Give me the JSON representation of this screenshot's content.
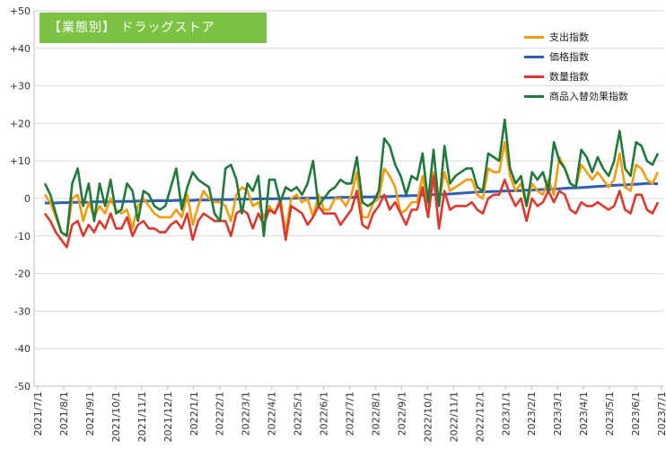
{
  "chart_data": {
    "type": "line",
    "title": "【業態別】 ドラッグストア",
    "xlabel": "",
    "ylabel": "",
    "ylim": [
      -50,
      50
    ],
    "yticks": [
      "-50",
      "-40",
      "-30",
      "-20",
      "-10",
      "0",
      "+10",
      "+20",
      "+30",
      "+40",
      "+50"
    ],
    "ytick_values": [
      -50,
      -40,
      -30,
      -20,
      -10,
      0,
      10,
      20,
      30,
      40,
      50
    ],
    "xticks": [
      "2021/7/1",
      "2021/8/1",
      "2021/9/1",
      "2021/10/1",
      "2021/11/1",
      "2021/12/1",
      "2022/1/1",
      "2022/2/1",
      "2022/3/1",
      "2022/4/1",
      "2022/5/1",
      "2022/6/1",
      "2022/7/1",
      "2022/8/1",
      "2022/9/1",
      "2022/10/1",
      "2022/11/1",
      "2022/12/1",
      "2023/1/1",
      "2023/2/1",
      "2023/3/1",
      "2023/4/1",
      "2023/5/1",
      "2023/6/1",
      "2023/7/1"
    ],
    "grid": true,
    "legend_position": "top-right",
    "x_unit": "week",
    "series": [
      {
        "name": "支出指数",
        "color": "#F59B0E",
        "values": [
          1,
          -1,
          -5,
          -9,
          -10,
          0,
          1,
          -6,
          -1,
          -5,
          -2,
          -4,
          0,
          -3,
          -4,
          -3,
          -8,
          -2,
          0,
          -2,
          -4,
          -5,
          -5,
          -5,
          -3,
          -5,
          1,
          -7,
          -2,
          2,
          0,
          -1,
          -1,
          -2,
          -6,
          1,
          3,
          2,
          -2,
          -1,
          -5,
          -2,
          -4,
          0,
          -9,
          0,
          1,
          -1,
          0,
          -5,
          1,
          -3,
          -3,
          0,
          0,
          -2,
          1,
          7,
          -5,
          -5,
          -1,
          0,
          8,
          6,
          3,
          -4,
          -3,
          -1,
          -1,
          6,
          -2,
          7,
          -1,
          7,
          2,
          3,
          4,
          5,
          5,
          1,
          0,
          8,
          7,
          7,
          15,
          6,
          2,
          4,
          -2,
          4,
          2,
          1,
          5,
          1,
          11,
          8,
          4,
          3,
          9,
          7,
          5,
          7,
          5,
          3,
          5,
          12,
          3,
          2,
          9,
          8,
          5,
          4,
          7
        ]
      },
      {
        "name": "価格指数",
        "color": "#2E5FB8",
        "values": [
          -1.2,
          -1.2,
          -1.2,
          -1.1,
          -1.1,
          -1.0,
          -1.0,
          -1.0,
          -1.0,
          -0.9,
          -0.9,
          -0.9,
          -0.9,
          -0.8,
          -0.8,
          -0.8,
          -0.8,
          -0.7,
          -0.7,
          -0.7,
          -0.6,
          -0.6,
          -0.6,
          -0.6,
          -0.5,
          -0.5,
          -0.5,
          -0.5,
          -0.4,
          -0.4,
          -0.4,
          -0.3,
          -0.3,
          -0.3,
          -0.3,
          -0.2,
          -0.2,
          -0.2,
          -0.2,
          -0.1,
          -0.1,
          -0.1,
          -0.1,
          0.0,
          0.0,
          0.0,
          0.1,
          0.1,
          0.1,
          0.1,
          0.2,
          0.2,
          0.2,
          0.2,
          0.3,
          0.3,
          0.3,
          0.3,
          0.4,
          0.4,
          0.4,
          0.4,
          0.5,
          0.5,
          0.6,
          0.7,
          0.7,
          0.8,
          0.8,
          0.9,
          0.9,
          1.0,
          1.0,
          1.1,
          1.2,
          1.3,
          1.4,
          1.5,
          1.6,
          1.7,
          1.8,
          1.8,
          1.9,
          1.9,
          2.0,
          2.0,
          2.1,
          2.1,
          2.2,
          2.2,
          2.3,
          2.4,
          2.4,
          2.5,
          2.6,
          2.7,
          2.8,
          2.8,
          2.9,
          3.0,
          3.1,
          3.2,
          3.3,
          3.4,
          3.5,
          3.6,
          3.6,
          3.7,
          3.8,
          3.9,
          4.0,
          4.0,
          3.9
        ]
      },
      {
        "name": "数量指数",
        "color": "#E0372C",
        "values": [
          -4,
          -6,
          -9,
          -11,
          -13,
          -7,
          -6,
          -10,
          -7,
          -9,
          -6,
          -8,
          -4,
          -8,
          -8,
          -5,
          -10,
          -7,
          -6,
          -8,
          -8,
          -9,
          -9,
          -7,
          -6,
          -8,
          -4,
          -11,
          -6,
          -4,
          -5,
          -6,
          -6,
          -6,
          -10,
          -4,
          -3,
          -4,
          -8,
          -4,
          -7,
          -3,
          -4,
          -1,
          -11,
          -2,
          -3,
          -4,
          -7,
          -5,
          -2,
          -4,
          -4,
          -4,
          -7,
          -5,
          -3,
          2,
          -7,
          -8,
          -4,
          -2,
          1,
          -3,
          -1,
          -4,
          -7,
          -3,
          -3,
          3,
          -5,
          6,
          -8,
          2,
          -3,
          -2,
          -2,
          -2,
          -1,
          -3,
          -4,
          0,
          1,
          1,
          5,
          1,
          -2,
          0,
          -6,
          0,
          -2,
          -1,
          2,
          -1,
          2,
          1,
          -3,
          -4,
          -1,
          -2,
          -2,
          -1,
          -2,
          -3,
          -2,
          2,
          -3,
          -4,
          1,
          1,
          -3,
          -4,
          -1
        ]
      },
      {
        "name": "商品入替効果指数",
        "color": "#1F7A3C",
        "values": [
          4,
          1,
          -4,
          -9,
          -10,
          4,
          8,
          -2,
          4,
          -6,
          4,
          -2,
          5,
          -4,
          -3,
          4,
          2,
          -6,
          2,
          1,
          -2,
          -3,
          -2,
          3,
          8,
          -3,
          3,
          7,
          5,
          4,
          3,
          -4,
          -6,
          8,
          9,
          5,
          -4,
          4,
          2,
          6,
          -10,
          5,
          5,
          -1,
          3,
          2,
          3,
          1,
          4,
          10,
          -2,
          0,
          2,
          3,
          5,
          4,
          4,
          11,
          -1,
          -2,
          -1,
          2,
          16,
          14,
          9,
          6,
          1,
          6,
          5,
          12,
          -1,
          13,
          -2,
          14,
          4,
          6,
          7,
          8,
          8,
          3,
          2,
          12,
          11,
          10,
          21,
          8,
          4,
          6,
          -2,
          7,
          5,
          7,
          2,
          15,
          10,
          8,
          4,
          3,
          13,
          11,
          7,
          11,
          8,
          6,
          10,
          18,
          8,
          6,
          15,
          14,
          10,
          9,
          12
        ]
      }
    ]
  },
  "legend": {
    "items": [
      "支出指数",
      "価格指数",
      "数量指数",
      "商品入替効果指数"
    ]
  }
}
